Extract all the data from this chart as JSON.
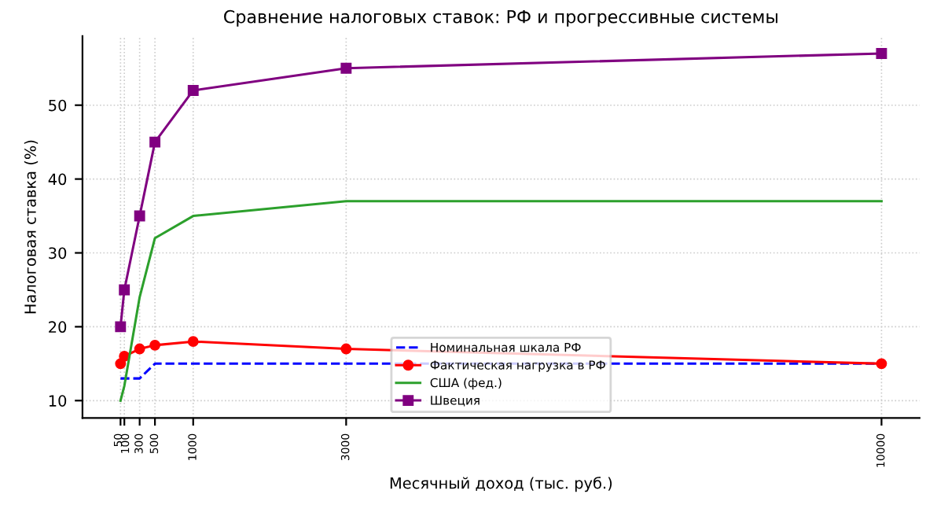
{
  "chart_data": {
    "type": "line",
    "title": "Сравнение налоговых ставок: РФ и прогрессивные системы",
    "xlabel": "Месячный доход (тыс. руб.)",
    "ylabel": "Налоговая ставка (%)",
    "x": [
      50,
      100,
      300,
      500,
      1000,
      3000,
      10000
    ],
    "series": [
      {
        "name": "Номинальная шкала РФ",
        "color": "#0000ff",
        "values": [
          13,
          13,
          13,
          15,
          15,
          15,
          15
        ],
        "line_style": "dashed",
        "marker": "none"
      },
      {
        "name": "Фактическая нагрузка в РФ",
        "color": "#ff0000",
        "values": [
          15,
          16,
          17,
          17.5,
          18,
          17,
          15
        ],
        "line_style": "solid",
        "marker": "circle"
      },
      {
        "name": "США (фед.)",
        "color": "#2ca02c",
        "values": [
          10,
          12,
          24,
          32,
          35,
          37,
          37
        ],
        "line_style": "solid",
        "marker": "none"
      },
      {
        "name": "Швеция",
        "color": "#800080",
        "values": [
          20,
          25,
          35,
          45,
          52,
          55,
          57
        ],
        "line_style": "solid",
        "marker": "square"
      }
    ],
    "xlim": [
      -447.5,
      10497.5
    ],
    "xticks": [
      50,
      100,
      300,
      500,
      1000,
      3000,
      10000
    ],
    "ylim": [
      7.65,
      59.35
    ],
    "yticks": [
      10,
      20,
      30,
      40,
      50
    ],
    "grid": true,
    "legend": "bottom"
  }
}
